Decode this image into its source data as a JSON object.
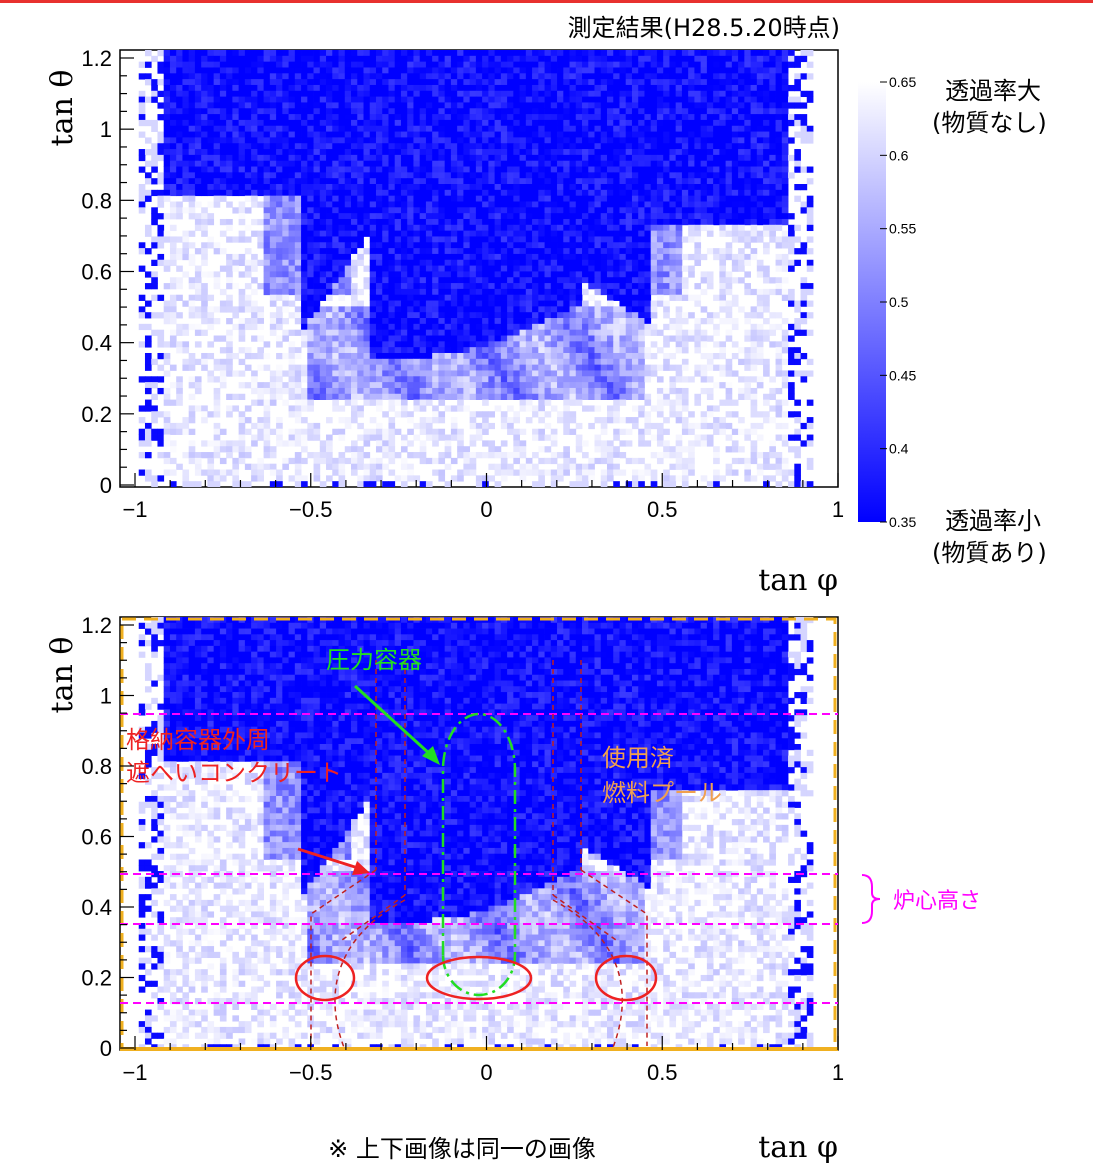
{
  "header": {
    "title": "測定結果(H28.5.20時点)"
  },
  "footer": {
    "note": "※ 上下画像は同一の画像"
  },
  "colors": {
    "accent_bar": "#e8312f",
    "data_blue": "#0000ff",
    "frame_orange": "#f0b020",
    "magenta": "#ff00ff",
    "green": "#22dd22",
    "red": "#ee2222",
    "orange_text": "#f0a050"
  },
  "chart_data": [
    {
      "type": "heatmap",
      "title": "",
      "xlabel": "tan φ",
      "ylabel": "tan θ",
      "xlim": [
        -1,
        1
      ],
      "ylim": [
        0,
        1.2
      ],
      "xticks": [
        "−1",
        "−0.5",
        "0",
        "0.5",
        "1"
      ],
      "yticks": [
        "0",
        "0.2",
        "0.4",
        "0.6",
        "0.8",
        "1",
        "1.2"
      ],
      "grid": false,
      "colorbar": {
        "min": 0.35,
        "max": 0.65,
        "ticks": [
          "0.65",
          "0.6",
          "0.55",
          "0.5",
          "0.45",
          "0.4",
          "0.35"
        ],
        "high_label_1": "透過率大",
        "high_label_2": "(物質なし)",
        "low_label_1": "透過率小",
        "low_label_2": "(物質あり)"
      }
    },
    {
      "type": "heatmap",
      "title": "",
      "xlabel": "tan φ",
      "ylabel": "tan θ",
      "xlim": [
        -1,
        1
      ],
      "ylim": [
        0,
        1.2
      ],
      "xticks": [
        "−1",
        "−0.5",
        "0",
        "0.5",
        "1"
      ],
      "yticks": [
        "0",
        "0.2",
        "0.4",
        "0.6",
        "0.8",
        "1",
        "1.2"
      ],
      "grid": false,
      "annotations": {
        "pressure_vessel": "圧力容器",
        "containment_line1": "格納容器外周",
        "containment_line2": "遮へいコンクリート",
        "pool_line1": "使用済",
        "pool_line2": "燃料プール",
        "core_height": "炉心高さ"
      },
      "core_band": [
        0.35,
        0.49
      ]
    }
  ]
}
